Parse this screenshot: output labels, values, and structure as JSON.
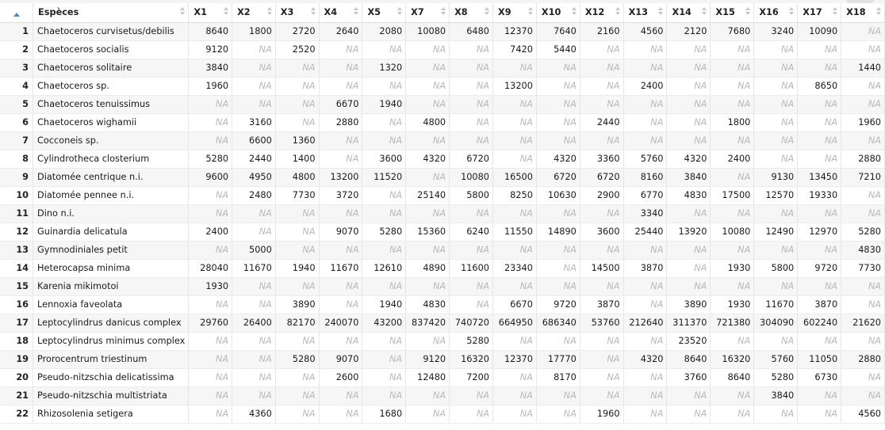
{
  "table": {
    "headers": [
      "Espèces",
      "X1",
      "X2",
      "X3",
      "X4",
      "X5",
      "X7",
      "X8",
      "X9",
      "X10",
      "X12",
      "X13",
      "X14",
      "X15",
      "X16",
      "X17",
      "X18"
    ],
    "sort_column": "row-index",
    "sort_direction": "ascending",
    "rows": [
      {
        "n": "1",
        "sp": "Chaetoceros curvisetus/debilis",
        "v": [
          "8640",
          "1800",
          "2720",
          "2640",
          "2080",
          "10080",
          "6480",
          "12370",
          "7640",
          "2160",
          "4560",
          "2120",
          "7680",
          "3240",
          "10090",
          "NA"
        ]
      },
      {
        "n": "2",
        "sp": "Chaetoceros socialis",
        "v": [
          "9120",
          "NA",
          "2520",
          "NA",
          "NA",
          "NA",
          "NA",
          "7420",
          "5440",
          "NA",
          "NA",
          "NA",
          "NA",
          "NA",
          "NA",
          "NA"
        ]
      },
      {
        "n": "3",
        "sp": "Chaetoceros solitaire",
        "v": [
          "3840",
          "NA",
          "NA",
          "NA",
          "1320",
          "NA",
          "NA",
          "NA",
          "NA",
          "NA",
          "NA",
          "NA",
          "NA",
          "NA",
          "NA",
          "1440"
        ]
      },
      {
        "n": "4",
        "sp": "Chaetoceros sp.",
        "v": [
          "1960",
          "NA",
          "NA",
          "NA",
          "NA",
          "NA",
          "NA",
          "13200",
          "NA",
          "NA",
          "2400",
          "NA",
          "NA",
          "NA",
          "8650",
          "NA"
        ]
      },
      {
        "n": "5",
        "sp": "Chaetoceros tenuissimus",
        "v": [
          "NA",
          "NA",
          "NA",
          "6670",
          "1940",
          "NA",
          "NA",
          "NA",
          "NA",
          "NA",
          "NA",
          "NA",
          "NA",
          "NA",
          "NA",
          "NA"
        ]
      },
      {
        "n": "6",
        "sp": "Chaetoceros wighamii",
        "v": [
          "NA",
          "3160",
          "NA",
          "2880",
          "NA",
          "4800",
          "NA",
          "NA",
          "NA",
          "2440",
          "NA",
          "NA",
          "1800",
          "NA",
          "NA",
          "1960"
        ]
      },
      {
        "n": "7",
        "sp": "Cocconeis sp.",
        "v": [
          "NA",
          "6600",
          "1360",
          "NA",
          "NA",
          "NA",
          "NA",
          "NA",
          "NA",
          "NA",
          "NA",
          "NA",
          "NA",
          "NA",
          "NA",
          "NA"
        ]
      },
      {
        "n": "8",
        "sp": "Cylindrotheca closterium",
        "v": [
          "5280",
          "2440",
          "1400",
          "NA",
          "3600",
          "4320",
          "6720",
          "NA",
          "4320",
          "3360",
          "5760",
          "4320",
          "2400",
          "NA",
          "NA",
          "2880"
        ]
      },
      {
        "n": "9",
        "sp": "Diatomée centrique n.i.",
        "v": [
          "9600",
          "4950",
          "4800",
          "13200",
          "11520",
          "NA",
          "10080",
          "16500",
          "6720",
          "6720",
          "8160",
          "3840",
          "NA",
          "9130",
          "13450",
          "7210"
        ]
      },
      {
        "n": "10",
        "sp": "Diatomée pennee n.i.",
        "v": [
          "NA",
          "2480",
          "7730",
          "3720",
          "NA",
          "25140",
          "5800",
          "8250",
          "10630",
          "2900",
          "6770",
          "4830",
          "17500",
          "12570",
          "19330",
          "NA"
        ]
      },
      {
        "n": "11",
        "sp": "Dino n.i.",
        "v": [
          "NA",
          "NA",
          "NA",
          "NA",
          "NA",
          "NA",
          "NA",
          "NA",
          "NA",
          "NA",
          "3340",
          "NA",
          "NA",
          "NA",
          "NA",
          "NA"
        ]
      },
      {
        "n": "12",
        "sp": "Guinardia delicatula",
        "v": [
          "2400",
          "NA",
          "NA",
          "9070",
          "5280",
          "15360",
          "6240",
          "11550",
          "14890",
          "3600",
          "25440",
          "13920",
          "10080",
          "12490",
          "12970",
          "5280"
        ]
      },
      {
        "n": "13",
        "sp": "Gymnodiniales petit",
        "v": [
          "NA",
          "5000",
          "NA",
          "NA",
          "NA",
          "NA",
          "NA",
          "NA",
          "NA",
          "NA",
          "NA",
          "NA",
          "NA",
          "NA",
          "NA",
          "4830"
        ]
      },
      {
        "n": "14",
        "sp": "Heterocapsa minima",
        "v": [
          "28040",
          "11670",
          "1940",
          "11670",
          "12610",
          "4890",
          "11600",
          "23340",
          "NA",
          "14500",
          "3870",
          "NA",
          "1930",
          "5800",
          "9720",
          "7730"
        ]
      },
      {
        "n": "15",
        "sp": "Karenia mikimotoi",
        "v": [
          "1930",
          "NA",
          "NA",
          "NA",
          "NA",
          "NA",
          "NA",
          "NA",
          "NA",
          "NA",
          "NA",
          "NA",
          "NA",
          "NA",
          "NA",
          "NA"
        ]
      },
      {
        "n": "16",
        "sp": "Lennoxia faveolata",
        "v": [
          "NA",
          "NA",
          "3890",
          "NA",
          "1940",
          "4830",
          "NA",
          "6670",
          "9720",
          "3870",
          "NA",
          "3890",
          "1930",
          "11670",
          "3870",
          "NA"
        ]
      },
      {
        "n": "17",
        "sp": "Leptocylindrus danicus complex",
        "v": [
          "29760",
          "26400",
          "82170",
          "240070",
          "43200",
          "837420",
          "740720",
          "664950",
          "686340",
          "53760",
          "212640",
          "311370",
          "721380",
          "304090",
          "602240",
          "21620"
        ]
      },
      {
        "n": "18",
        "sp": "Leptocylindrus minimus complex",
        "v": [
          "NA",
          "NA",
          "NA",
          "NA",
          "NA",
          "NA",
          "5280",
          "NA",
          "NA",
          "NA",
          "NA",
          "23520",
          "NA",
          "NA",
          "NA",
          "NA"
        ]
      },
      {
        "n": "19",
        "sp": "Prorocentrum triestinum",
        "v": [
          "NA",
          "NA",
          "5280",
          "9070",
          "NA",
          "9120",
          "16320",
          "12370",
          "17770",
          "NA",
          "4320",
          "8640",
          "16320",
          "5760",
          "11050",
          "2880"
        ]
      },
      {
        "n": "20",
        "sp": "Pseudo-nitzschia delicatissima",
        "v": [
          "NA",
          "NA",
          "NA",
          "2600",
          "NA",
          "12480",
          "7200",
          "NA",
          "8170",
          "NA",
          "NA",
          "3760",
          "8640",
          "5280",
          "6730",
          "NA"
        ]
      },
      {
        "n": "21",
        "sp": "Pseudo-nitzschia multistriata",
        "v": [
          "NA",
          "NA",
          "NA",
          "NA",
          "NA",
          "NA",
          "NA",
          "NA",
          "NA",
          "NA",
          "NA",
          "NA",
          "NA",
          "3840",
          "NA",
          "NA"
        ]
      },
      {
        "n": "22",
        "sp": "Rhizosolenia setigera",
        "v": [
          "NA",
          "4360",
          "NA",
          "NA",
          "1680",
          "NA",
          "NA",
          "NA",
          "NA",
          "1960",
          "NA",
          "NA",
          "NA",
          "NA",
          "NA",
          "4560"
        ]
      }
    ]
  },
  "colors": {
    "sort_arrow": "#3b8fd6",
    "na_text": "#b9b9b9",
    "stripe": "#f6f6f6"
  }
}
